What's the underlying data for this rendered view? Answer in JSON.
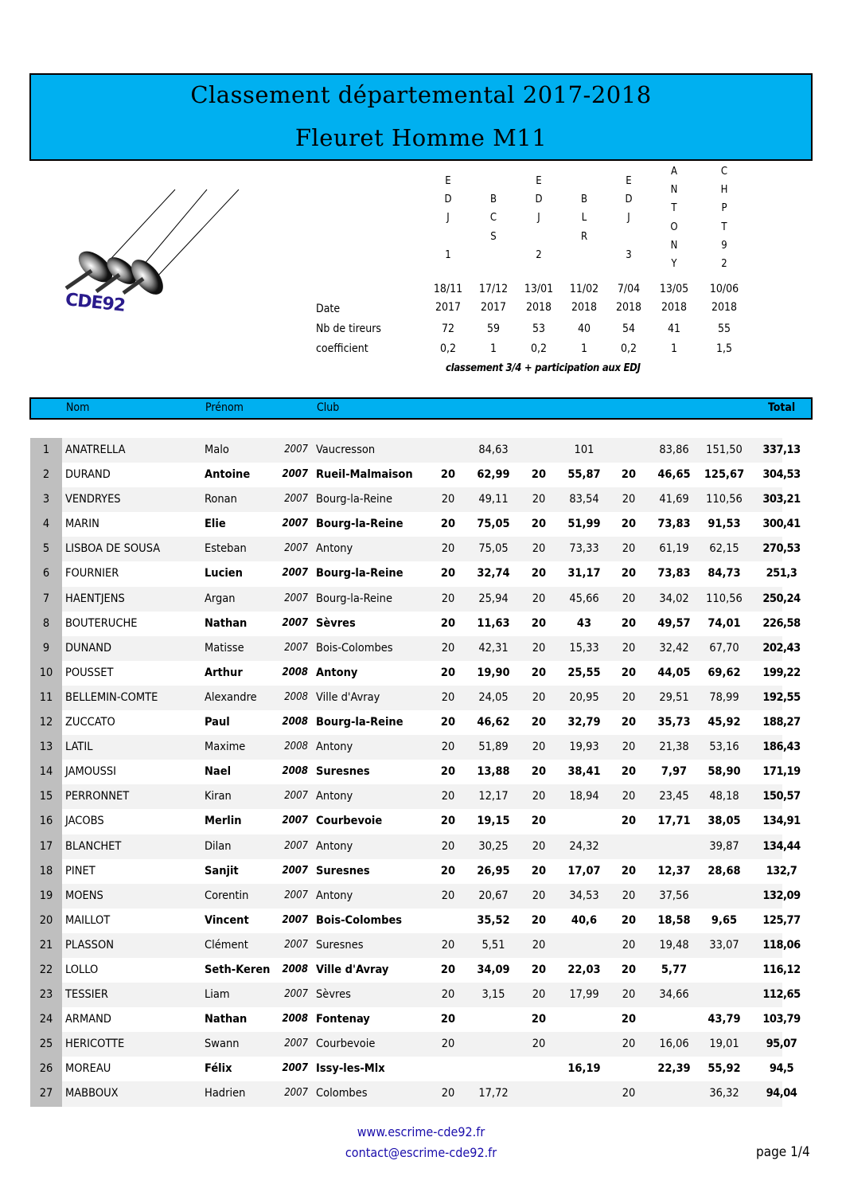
{
  "title": "Classement départemental 2017-2018",
  "subtitle": "Fleuret Homme M11",
  "logo_text": "CDE92",
  "events": [
    {
      "code": [
        "E",
        "D",
        "J",
        "",
        "1"
      ],
      "date": [
        "18/11",
        "2017"
      ],
      "nb_tireurs": "72",
      "coefficient": "0,2"
    },
    {
      "code": [
        "",
        "B",
        "C",
        "S",
        ""
      ],
      "date": [
        "17/12",
        "2017"
      ],
      "nb_tireurs": "59",
      "coefficient": "1"
    },
    {
      "code": [
        "E",
        "D",
        "J",
        "",
        "2"
      ],
      "date": [
        "13/01",
        "2018"
      ],
      "nb_tireurs": "53",
      "coefficient": "0,2"
    },
    {
      "code": [
        "",
        "B",
        "L",
        "R",
        ""
      ],
      "date": [
        "11/02",
        "2018"
      ],
      "nb_tireurs": "40",
      "coefficient": "1"
    },
    {
      "code": [
        "E",
        "D",
        "J",
        "",
        "3"
      ],
      "date": [
        "7/04",
        "2018"
      ],
      "nb_tireurs": "54",
      "coefficient": "0,2"
    },
    {
      "code": [
        "A",
        "N",
        "T",
        "O",
        "N",
        "Y"
      ],
      "date": [
        "13/05",
        "2018"
      ],
      "nb_tireurs": "41",
      "coefficient": "1"
    },
    {
      "code": [
        "C",
        "H",
        "P",
        "T",
        "9",
        "2"
      ],
      "date": [
        "10/06",
        "2018"
      ],
      "nb_tireurs": "55",
      "coefficient": "1,5"
    }
  ],
  "labels": {
    "date": "Date",
    "nb_tireurs": "Nb de tireurs",
    "coefficient": "coefficient",
    "note": "classement 3/4  +  participation aux EDJ"
  },
  "table_header": {
    "nom": "Nom",
    "prenom": "Prénom",
    "club": "Club",
    "total": "Total"
  },
  "rows": [
    [
      "1",
      "ANATRELLA",
      "Malo",
      "2007",
      "Vaucresson",
      "",
      "84,63",
      "",
      "101",
      "",
      "83,86",
      "151,50",
      "337,13"
    ],
    [
      "2",
      "DURAND",
      "Antoine",
      "2007",
      "Rueil-Malmaison",
      "20",
      "62,99",
      "20",
      "55,87",
      "20",
      "46,65",
      "125,67",
      "304,53"
    ],
    [
      "3",
      "VENDRYES",
      "Ronan",
      "2007",
      "Bourg-la-Reine",
      "20",
      "49,11",
      "20",
      "83,54",
      "20",
      "41,69",
      "110,56",
      "303,21"
    ],
    [
      "4",
      "MARIN",
      "Elie",
      "2007",
      "Bourg-la-Reine",
      "20",
      "75,05",
      "20",
      "51,99",
      "20",
      "73,83",
      "91,53",
      "300,41"
    ],
    [
      "5",
      "LISBOA DE SOUSA",
      "Esteban",
      "2007",
      "Antony",
      "20",
      "75,05",
      "20",
      "73,33",
      "20",
      "61,19",
      "62,15",
      "270,53"
    ],
    [
      "6",
      "FOURNIER",
      "Lucien",
      "2007",
      "Bourg-la-Reine",
      "20",
      "32,74",
      "20",
      "31,17",
      "20",
      "73,83",
      "84,73",
      "251,3"
    ],
    [
      "7",
      "HAENTJENS",
      "Argan",
      "2007",
      "Bourg-la-Reine",
      "20",
      "25,94",
      "20",
      "45,66",
      "20",
      "34,02",
      "110,56",
      "250,24"
    ],
    [
      "8",
      "BOUTERUCHE",
      "Nathan",
      "2007",
      "Sèvres",
      "20",
      "11,63",
      "20",
      "43",
      "20",
      "49,57",
      "74,01",
      "226,58"
    ],
    [
      "9",
      "DUNAND",
      "Matisse",
      "2007",
      "Bois-Colombes",
      "20",
      "42,31",
      "20",
      "15,33",
      "20",
      "32,42",
      "67,70",
      "202,43"
    ],
    [
      "10",
      "POUSSET",
      "Arthur",
      "2008",
      "Antony",
      "20",
      "19,90",
      "20",
      "25,55",
      "20",
      "44,05",
      "69,62",
      "199,22"
    ],
    [
      "11",
      "BELLEMIN-COMTE",
      "Alexandre",
      "2008",
      "Ville d'Avray",
      "20",
      "24,05",
      "20",
      "20,95",
      "20",
      "29,51",
      "78,99",
      "192,55"
    ],
    [
      "12",
      "ZUCCATO",
      "Paul",
      "2008",
      "Bourg-la-Reine",
      "20",
      "46,62",
      "20",
      "32,79",
      "20",
      "35,73",
      "45,92",
      "188,27"
    ],
    [
      "13",
      "LATIL",
      "Maxime",
      "2008",
      "Antony",
      "20",
      "51,89",
      "20",
      "19,93",
      "20",
      "21,38",
      "53,16",
      "186,43"
    ],
    [
      "14",
      "JAMOUSSI",
      "Nael",
      "2008",
      "Suresnes",
      "20",
      "13,88",
      "20",
      "38,41",
      "20",
      "7,97",
      "58,90",
      "171,19"
    ],
    [
      "15",
      "PERRONNET",
      "Kiran",
      "2007",
      "Antony",
      "20",
      "12,17",
      "20",
      "18,94",
      "20",
      "23,45",
      "48,18",
      "150,57"
    ],
    [
      "16",
      "JACOBS",
      "Merlin",
      "2007",
      "Courbevoie",
      "20",
      "19,15",
      "20",
      "",
      "20",
      "17,71",
      "38,05",
      "134,91"
    ],
    [
      "17",
      "BLANCHET",
      "Dilan",
      "2007",
      "Antony",
      "20",
      "30,25",
      "20",
      "24,32",
      "",
      "",
      "39,87",
      "134,44"
    ],
    [
      "18",
      "PINET",
      "Sanjit",
      "2007",
      "Suresnes",
      "20",
      "26,95",
      "20",
      "17,07",
      "20",
      "12,37",
      "28,68",
      "132,7"
    ],
    [
      "19",
      "MOENS",
      "Corentin",
      "2007",
      "Antony",
      "20",
      "20,67",
      "20",
      "34,53",
      "20",
      "37,56",
      "",
      "132,09"
    ],
    [
      "20",
      "MAILLOT",
      "Vincent",
      "2007",
      "Bois-Colombes",
      "",
      "35,52",
      "20",
      "40,6",
      "20",
      "18,58",
      "9,65",
      "125,77"
    ],
    [
      "21",
      "PLASSON",
      "Clément",
      "2007",
      "Suresnes",
      "20",
      "5,51",
      "20",
      "",
      "20",
      "19,48",
      "33,07",
      "118,06"
    ],
    [
      "22",
      "LOLLO",
      "Seth-Keren",
      "2008",
      "Ville d'Avray",
      "20",
      "34,09",
      "20",
      "22,03",
      "20",
      "5,77",
      "",
      "116,12"
    ],
    [
      "23",
      "TESSIER",
      "Liam",
      "2007",
      "Sèvres",
      "20",
      "3,15",
      "20",
      "17,99",
      "20",
      "34,66",
      "",
      "112,65"
    ],
    [
      "24",
      "ARMAND",
      "Nathan",
      "2008",
      "Fontenay",
      "20",
      "",
      "20",
      "",
      "20",
      "",
      "43,79",
      "103,79"
    ],
    [
      "25",
      "HERICOTTE",
      "Swann",
      "2007",
      "Courbevoie",
      "20",
      "",
      "20",
      "",
      "20",
      "16,06",
      "19,01",
      "95,07"
    ],
    [
      "26",
      "MOREAU",
      "Félix",
      "2007",
      "Issy-les-Mlx",
      "",
      "",
      "",
      "16,19",
      "",
      "22,39",
      "55,92",
      "94,5"
    ],
    [
      "27",
      "MABBOUX",
      "Hadrien",
      "2007",
      "Colombes",
      "20",
      "17,72",
      "",
      "",
      "20",
      "",
      "36,32",
      "94,04"
    ]
  ],
  "footer": {
    "website": "www.escrime-cde92.fr",
    "email": "contact@escrime-cde92.fr",
    "page": "page  1/4"
  },
  "colors": {
    "header_blue": "#00b0f0",
    "row_alt": "#f2f2f2",
    "rank_grey": "#bfbfbf",
    "link": "#1a0dab",
    "logo": "#2a1b8c"
  }
}
